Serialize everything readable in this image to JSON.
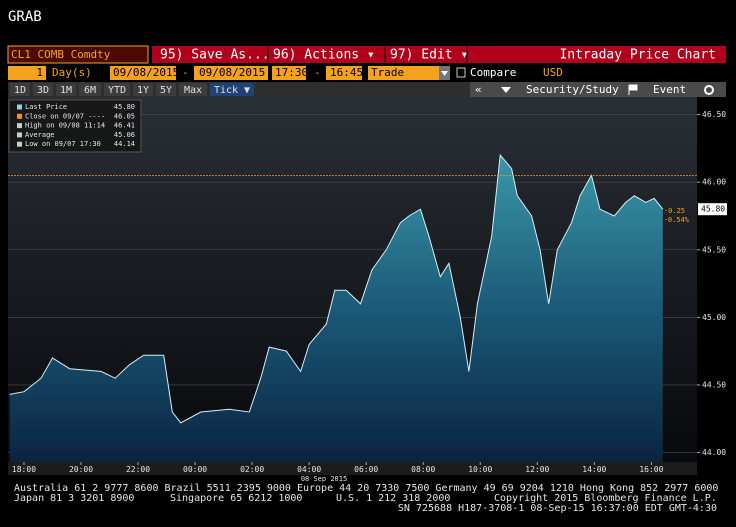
{
  "title": "GRAB",
  "toolbar": {
    "security": "CL1 COMB Comdty",
    "buttons": [
      "95) Save As...",
      "96) Actions ▾",
      "97) Edit ▾"
    ],
    "chart_name": "Intraday Price Chart"
  },
  "range": {
    "count": "1",
    "unit": "Day(s)",
    "start_date": "09/08/2015",
    "separator": "-",
    "end_date": "09/08/2015",
    "start_time": "17:30",
    "end_time": "16:45",
    "field": "Trade",
    "compare": "Compare",
    "currency": "USD"
  },
  "periods": [
    "1D",
    "3D",
    "1M",
    "6M",
    "YTD",
    "1Y",
    "5Y",
    "Max",
    "Tick ▼"
  ],
  "panel": [
    "«",
    "Security/Study",
    "Event"
  ],
  "legend": [
    {
      "label": "Last Price",
      "value": "45.80"
    },
    {
      "label": "Close on 09/07 ----",
      "value": "46.05"
    },
    {
      "label": "High on 09/08 11:14",
      "value": "46.41"
    },
    {
      "label": "Average",
      "value": "45.06"
    },
    {
      "label": "Low on 09/07 17:30",
      "value": "44.14"
    }
  ],
  "chart_data": {
    "type": "area",
    "x": [
      17.5,
      18,
      18.6,
      19,
      19.6,
      20.7,
      21.2,
      21.7,
      22.2,
      22.9,
      23.2,
      23.5,
      24.2,
      25.2,
      25.9,
      26.3,
      26.6,
      27.2,
      27.7,
      28,
      28.6,
      28.9,
      29.3,
      29.8,
      30.2,
      30.7,
      31.2,
      31.5,
      31.9,
      32.2,
      32.6,
      32.9,
      33.3,
      33.6,
      33.9,
      34.4,
      34.7,
      35.1,
      35.3,
      35.8,
      36.1,
      36.4,
      36.7,
      37.2,
      37.5,
      37.9,
      38.2,
      38.7,
      39.1,
      39.4,
      39.8,
      40.1,
      40.4
    ],
    "series": [
      {
        "name": "Last Price",
        "color": "#d8eef5",
        "values": [
          44.43,
          44.45,
          44.55,
          44.7,
          44.62,
          44.6,
          44.55,
          44.65,
          44.72,
          44.72,
          44.3,
          44.22,
          44.3,
          44.32,
          44.3,
          44.55,
          44.78,
          44.75,
          44.6,
          44.8,
          44.95,
          45.2,
          45.2,
          45.1,
          45.35,
          45.5,
          45.7,
          45.75,
          45.8,
          45.6,
          45.3,
          45.4,
          45.0,
          44.6,
          45.1,
          45.6,
          46.2,
          46.1,
          45.9,
          45.75,
          45.5,
          45.1,
          45.5,
          45.7,
          45.9,
          46.05,
          45.8,
          45.75,
          45.85,
          45.9,
          45.85,
          45.88,
          45.8
        ]
      }
    ],
    "xlim": [
      17.44,
      41.6
    ],
    "xticks": [
      {
        "value": 18,
        "label": "18:00"
      },
      {
        "value": 20,
        "label": "20:00"
      },
      {
        "value": 22,
        "label": "22:00"
      },
      {
        "value": 24,
        "label": "00:00"
      },
      {
        "value": 26,
        "label": "02:00"
      },
      {
        "value": 28,
        "label": "04:00"
      },
      {
        "value": 30,
        "label": "06:00"
      },
      {
        "value": 32,
        "label": "08:00"
      },
      {
        "value": 34,
        "label": "10:00"
      },
      {
        "value": 36,
        "label": "12:00"
      },
      {
        "value": 38,
        "label": "14:00"
      },
      {
        "value": 40,
        "label": "16:00"
      }
    ],
    "date_label": "08 Sep 2015",
    "ylim": [
      43.93,
      46.63
    ],
    "yticks": [
      {
        "value": 44,
        "label": "44.00"
      },
      {
        "value": 44.5,
        "label": "44.50"
      },
      {
        "value": 45,
        "label": "45.00"
      },
      {
        "value": 45.5,
        "label": "45.50"
      },
      {
        "value": 46,
        "label": "46.00"
      },
      {
        "value": 46.5,
        "label": "46.50"
      }
    ],
    "grid": true,
    "prev_close": {
      "value": 46.05,
      "color": "#f7941d"
    },
    "last_price": {
      "value": 45.8,
      "label": "45.80"
    },
    "change": "-0.25",
    "change_pct": "-0.54%"
  },
  "footer": {
    "line1": "Australia 61 2 9777 8600 Brazil 5511 2395 9000 Europe 44 20 7330 7500 Germany 49 69 9204 1210 Hong Kong 852 2977 6000",
    "line2": [
      "Japan 81 3 3201 8900",
      "Singapore 65 6212 1000",
      "U.S. 1 212 318 2000",
      "Copyright 2015 Bloomberg Finance L.P."
    ],
    "line3": "SN 725688 H187-3708-1 08-Sep-15 16:37:00 EDT GMT-4:30"
  }
}
